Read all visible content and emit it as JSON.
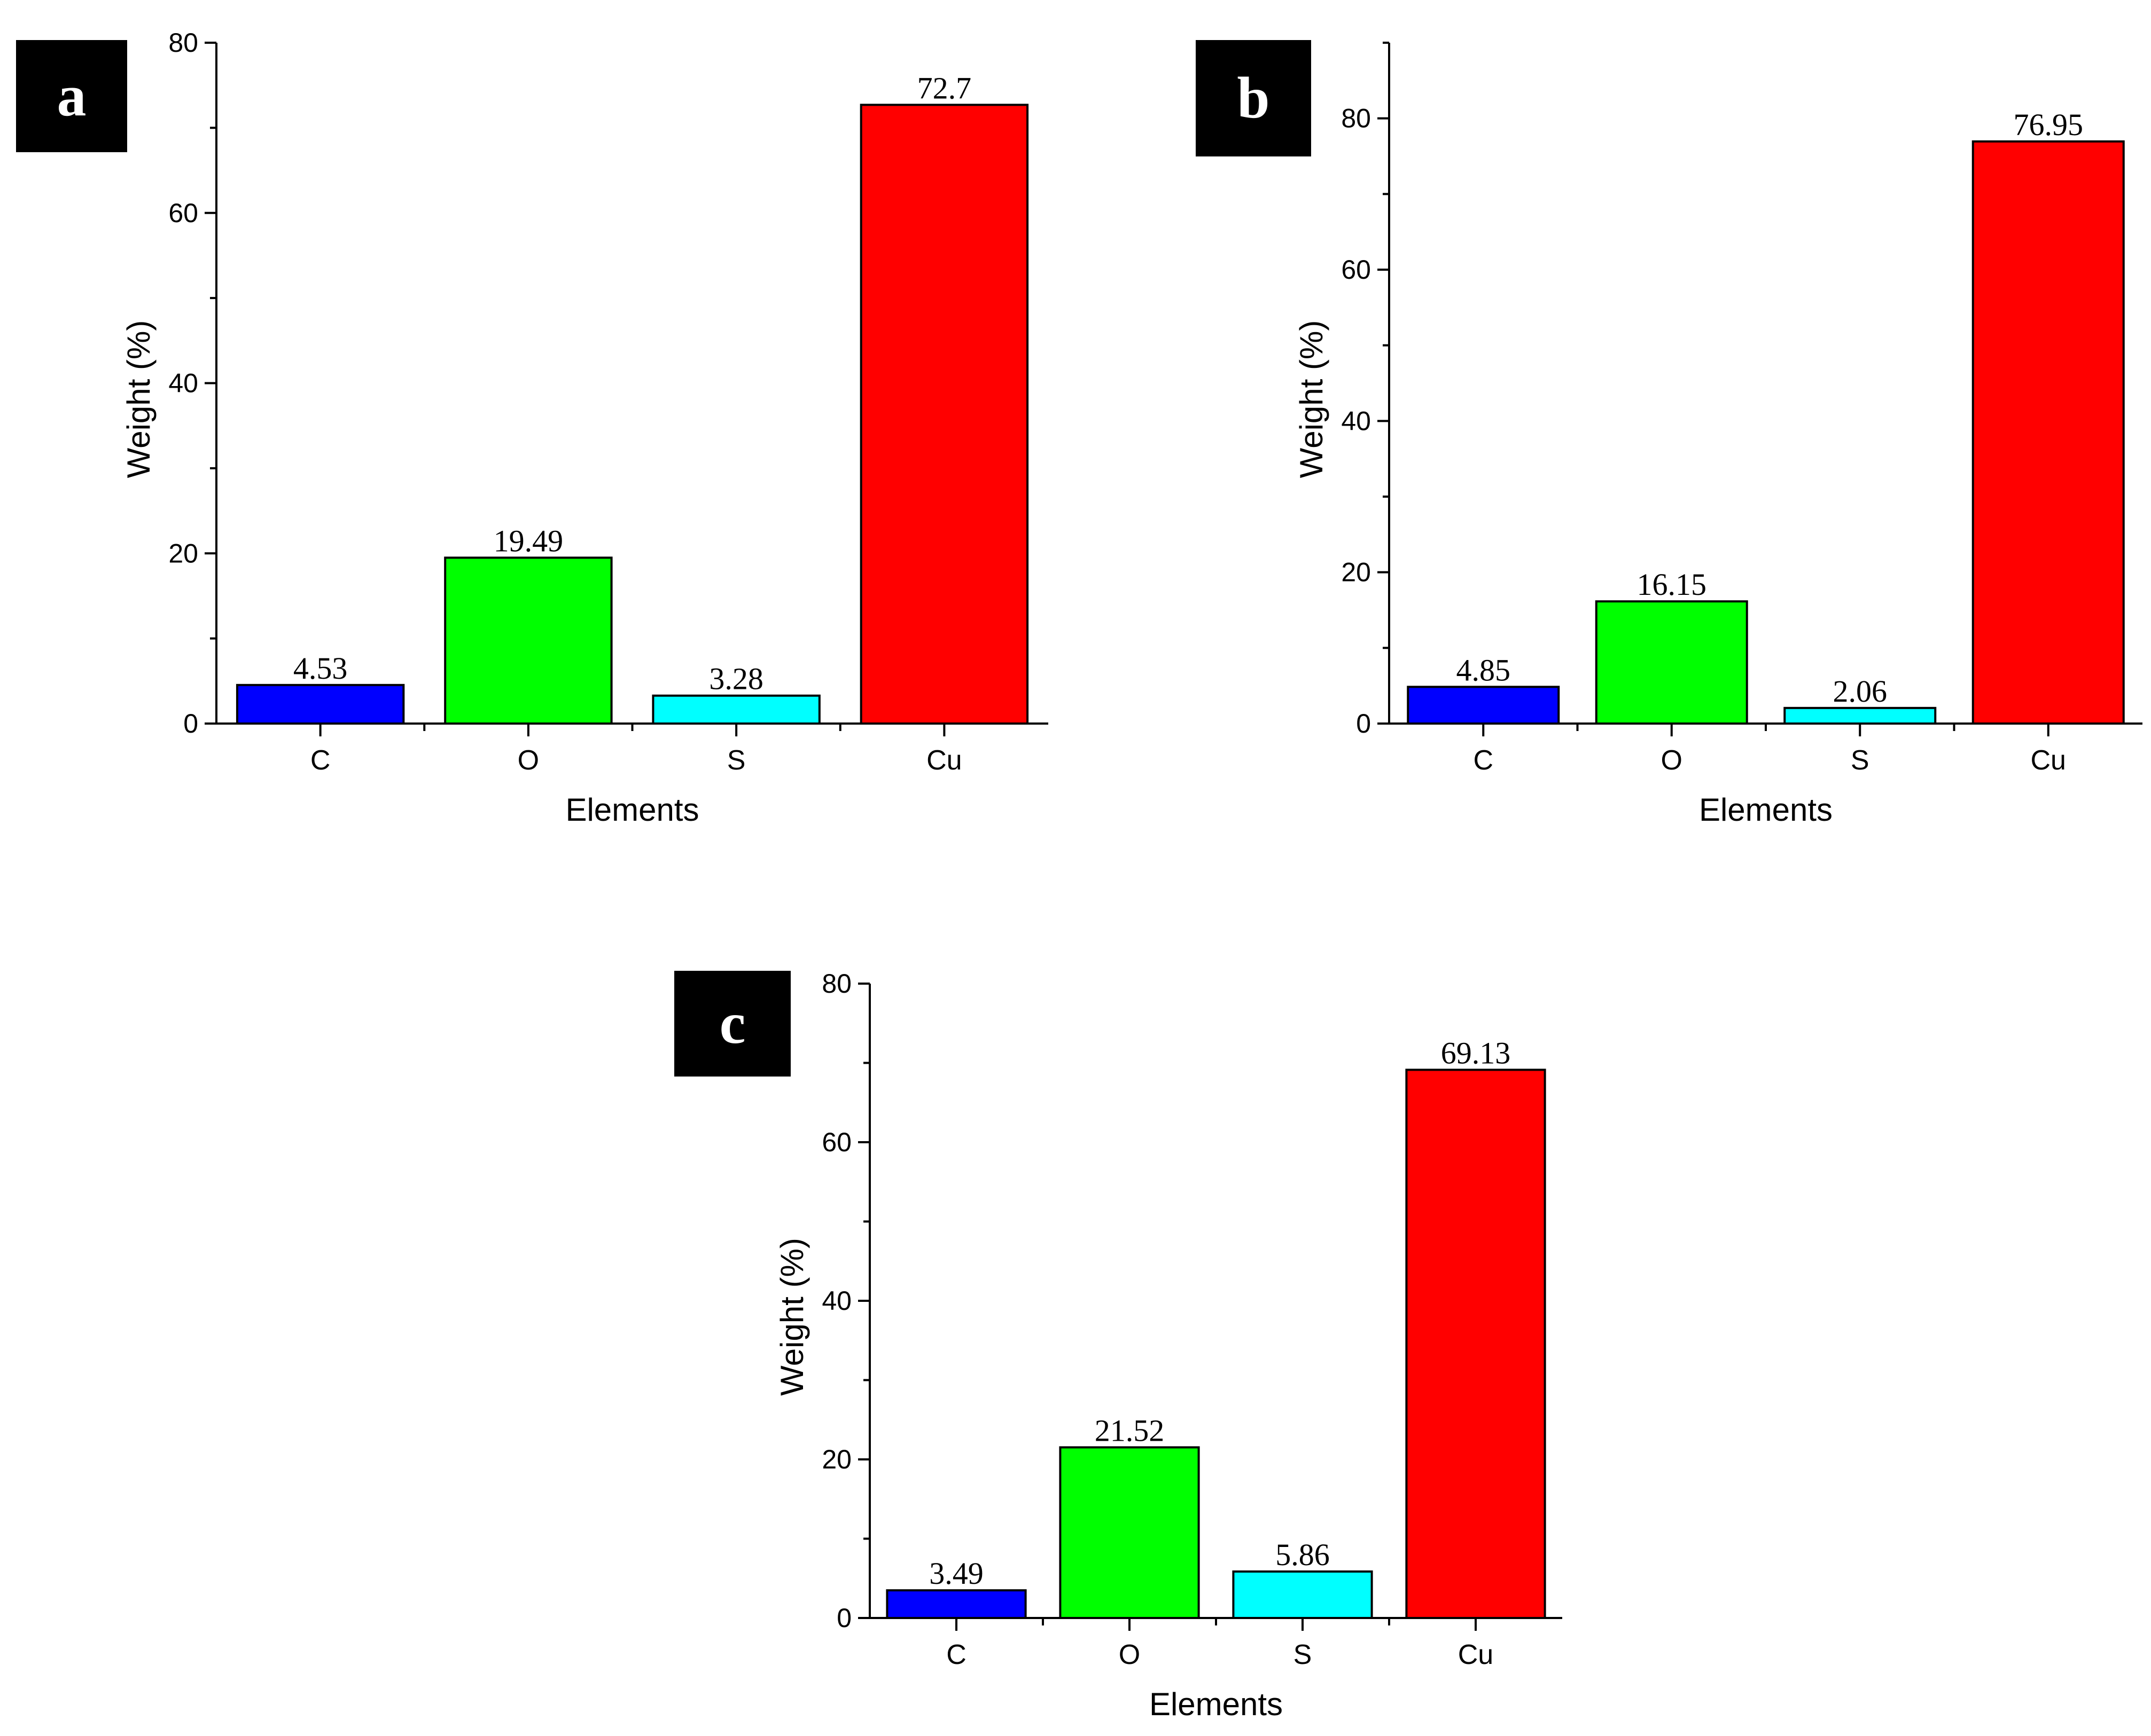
{
  "chart_data": [
    {
      "panel": "a",
      "type": "bar",
      "categories": [
        "C",
        "O",
        "S",
        "Cu"
      ],
      "values": [
        4.53,
        19.49,
        3.28,
        72.7
      ],
      "value_labels": [
        "4.53",
        "19.49",
        "3.28",
        "72.7"
      ],
      "colors": [
        "#0000ff",
        "#00ff00",
        "#00ffff",
        "#ff0000"
      ],
      "xlabel": "Elements",
      "ylabel": "Weight (%)",
      "ylim": [
        0,
        80
      ],
      "yticks": [
        0,
        20,
        40,
        60,
        80
      ]
    },
    {
      "panel": "b",
      "type": "bar",
      "categories": [
        "C",
        "O",
        "S",
        "Cu"
      ],
      "values": [
        4.85,
        16.15,
        2.06,
        76.95
      ],
      "value_labels": [
        "4.85",
        "16.15",
        "2.06",
        "76.95"
      ],
      "colors": [
        "#0000ff",
        "#00ff00",
        "#00ffff",
        "#ff0000"
      ],
      "xlabel": "Elements",
      "ylabel": "Weight (%)",
      "ylim": [
        0,
        90
      ],
      "yticks": [
        0,
        20,
        40,
        60,
        80
      ]
    },
    {
      "panel": "c",
      "type": "bar",
      "categories": [
        "C",
        "O",
        "S",
        "Cu"
      ],
      "values": [
        3.49,
        21.52,
        5.86,
        69.13
      ],
      "value_labels": [
        "3.49",
        "21.52",
        "5.86",
        "69.13"
      ],
      "colors": [
        "#0000ff",
        "#00ff00",
        "#00ffff",
        "#ff0000"
      ],
      "xlabel": "Elements",
      "ylabel": "Weight (%)",
      "ylim": [
        0,
        80
      ],
      "yticks": [
        0,
        20,
        40,
        60,
        80
      ]
    }
  ]
}
